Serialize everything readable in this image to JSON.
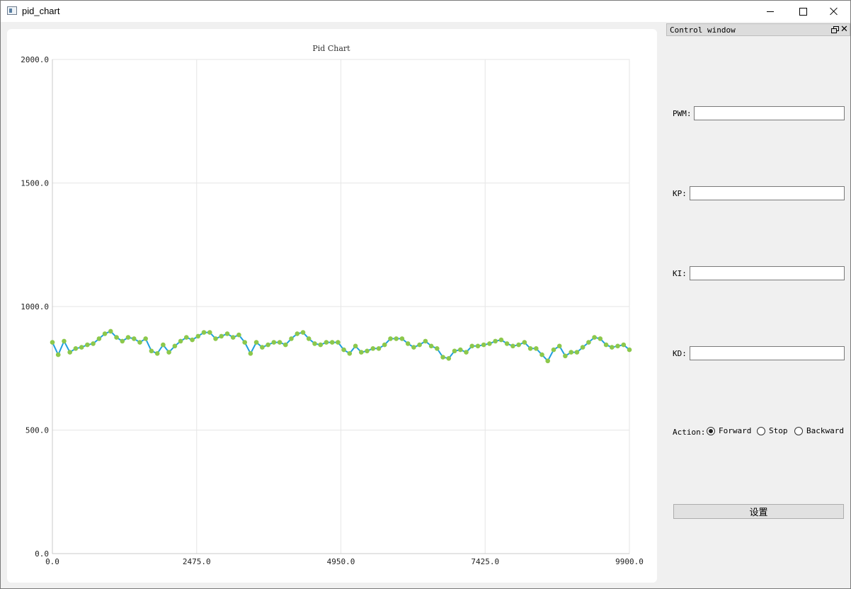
{
  "window": {
    "title": "pid_chart",
    "min_icon": "minimize-icon",
    "max_icon": "maximize-icon",
    "close_icon": "close-icon"
  },
  "chart_data": {
    "type": "line",
    "title": "Pid Chart",
    "xlabel": "",
    "ylabel": "",
    "xlim": [
      0,
      9900
    ],
    "ylim": [
      0,
      2000
    ],
    "x_ticks": [
      "0.0",
      "2475.0",
      "4950.0",
      "7425.0",
      "9900.0"
    ],
    "y_ticks": [
      "0.0",
      "500.0",
      "1000.0",
      "1500.0",
      "2000.0"
    ],
    "grid": true,
    "line_color": "#209fdf",
    "point_color": "#8cc84b",
    "series": [
      {
        "x": [
          0,
          100,
          200,
          300,
          400,
          500,
          600,
          700,
          800,
          900,
          1000,
          1100,
          1200,
          1300,
          1400,
          1500,
          1600,
          1700,
          1800,
          1900,
          2000,
          2100,
          2200,
          2300,
          2400,
          2500,
          2600,
          2700,
          2800,
          2900,
          3000,
          3100,
          3200,
          3300,
          3400,
          3500,
          3600,
          3700,
          3800,
          3900,
          4000,
          4100,
          4200,
          4300,
          4400,
          4500,
          4600,
          4700,
          4800,
          4900,
          5000,
          5100,
          5200,
          5300,
          5400,
          5500,
          5600,
          5700,
          5800,
          5900,
          6000,
          6100,
          6200,
          6300,
          6400,
          6500,
          6600,
          6700,
          6800,
          6900,
          7000,
          7100,
          7200,
          7300,
          7400,
          7500,
          7600,
          7700,
          7800,
          7900,
          8000,
          8100,
          8200,
          8300,
          8400,
          8500,
          8600,
          8700,
          8800,
          8900,
          9000,
          9100,
          9200,
          9300,
          9400,
          9500,
          9600,
          9700,
          9800,
          9900
        ],
        "y": [
          855,
          805,
          860,
          815,
          830,
          835,
          845,
          850,
          870,
          890,
          900,
          875,
          860,
          875,
          870,
          855,
          870,
          820,
          810,
          845,
          815,
          840,
          860,
          875,
          865,
          880,
          895,
          895,
          870,
          880,
          890,
          875,
          885,
          855,
          810,
          855,
          835,
          845,
          855,
          855,
          845,
          870,
          890,
          895,
          870,
          850,
          845,
          855,
          855,
          855,
          825,
          810,
          840,
          815,
          820,
          830,
          830,
          845,
          870,
          870,
          870,
          850,
          835,
          845,
          860,
          840,
          830,
          795,
          790,
          820,
          825,
          815,
          840,
          840,
          845,
          850,
          860,
          865,
          850,
          840,
          845,
          855,
          830,
          830,
          805,
          780,
          825,
          840,
          800,
          815,
          815,
          835,
          855,
          875,
          870,
          845,
          835,
          840,
          845,
          825
        ]
      }
    ]
  },
  "dock": {
    "title": "Control window",
    "float_icon": "float-icon",
    "close_icon": "close-icon",
    "close_glyph": "✕",
    "pwm_label": "PWM:",
    "pwm_value": "",
    "kp_label": "KP:",
    "kp_value": "",
    "ki_label": "KI:",
    "ki_value": "",
    "kd_label": "KD:",
    "kd_value": "",
    "action_label": "Action:",
    "options": [
      {
        "label": "Forward",
        "checked": true
      },
      {
        "label": "Stop",
        "checked": false
      },
      {
        "label": "Backward",
        "checked": false
      }
    ],
    "set_button": "设置"
  }
}
